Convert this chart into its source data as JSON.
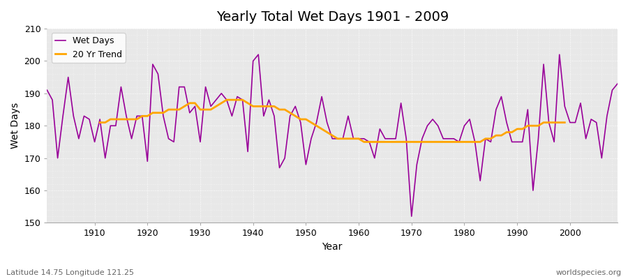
{
  "title": "Yearly Total Wet Days 1901 - 2009",
  "xlabel": "Year",
  "ylabel": "Wet Days",
  "subtitle": "Latitude 14.75 Longitude 121.25",
  "watermark": "worldspecies.org",
  "legend_labels": [
    "Wet Days",
    "20 Yr Trend"
  ],
  "line_color": "#990099",
  "trend_color": "#FFA500",
  "bg_color": "#ffffff",
  "plot_bg_color": "#e8e8e8",
  "years": [
    1901,
    1902,
    1903,
    1904,
    1905,
    1906,
    1907,
    1908,
    1909,
    1910,
    1911,
    1912,
    1913,
    1914,
    1915,
    1916,
    1917,
    1918,
    1919,
    1920,
    1921,
    1922,
    1923,
    1924,
    1925,
    1926,
    1927,
    1928,
    1929,
    1930,
    1931,
    1932,
    1933,
    1934,
    1935,
    1936,
    1937,
    1938,
    1939,
    1940,
    1941,
    1942,
    1943,
    1944,
    1945,
    1946,
    1947,
    1948,
    1949,
    1950,
    1951,
    1952,
    1953,
    1954,
    1955,
    1956,
    1957,
    1958,
    1959,
    1960,
    1961,
    1962,
    1963,
    1964,
    1965,
    1966,
    1967,
    1968,
    1969,
    1970,
    1971,
    1972,
    1973,
    1974,
    1975,
    1976,
    1977,
    1978,
    1979,
    1980,
    1981,
    1982,
    1983,
    1984,
    1985,
    1986,
    1987,
    1988,
    1989,
    1990,
    1991,
    1992,
    1993,
    1994,
    1995,
    1996,
    1997,
    1998,
    1999,
    2000,
    2001,
    2002,
    2003,
    2004,
    2005,
    2006,
    2007,
    2008,
    2009
  ],
  "wet_days": [
    191,
    188,
    170,
    183,
    195,
    183,
    176,
    183,
    182,
    175,
    182,
    170,
    180,
    180,
    192,
    183,
    176,
    183,
    183,
    169,
    199,
    196,
    183,
    176,
    175,
    192,
    192,
    184,
    186,
    175,
    192,
    186,
    188,
    190,
    188,
    183,
    189,
    188,
    172,
    200,
    202,
    183,
    188,
    183,
    167,
    170,
    183,
    186,
    181,
    168,
    176,
    181,
    189,
    181,
    176,
    176,
    176,
    183,
    176,
    176,
    176,
    175,
    170,
    179,
    176,
    176,
    176,
    187,
    176,
    152,
    168,
    176,
    180,
    182,
    180,
    176,
    176,
    176,
    175,
    180,
    182,
    175,
    163,
    176,
    175,
    185,
    189,
    181,
    175,
    175,
    175,
    185,
    160,
    176,
    199,
    181,
    175,
    202,
    186,
    181,
    181,
    187,
    176,
    182,
    181,
    170,
    183,
    191,
    193
  ],
  "trend_years": [
    1911,
    1912,
    1913,
    1914,
    1915,
    1916,
    1917,
    1918,
    1919,
    1920,
    1921,
    1922,
    1923,
    1924,
    1925,
    1926,
    1927,
    1928,
    1929,
    1930,
    1931,
    1932,
    1933,
    1934,
    1935,
    1936,
    1937,
    1938,
    1939,
    1940,
    1941,
    1942,
    1943,
    1944,
    1945,
    1946,
    1947,
    1948,
    1949,
    1950,
    1951,
    1952,
    1953,
    1954,
    1955,
    1956,
    1957,
    1958,
    1959,
    1960,
    1961,
    1962,
    1963,
    1964,
    1965,
    1966,
    1967,
    1968,
    1969,
    1970,
    1971,
    1972,
    1973,
    1974,
    1975,
    1976,
    1977,
    1978,
    1979,
    1980,
    1981,
    1982,
    1983,
    1984,
    1985,
    1986,
    1987,
    1988,
    1989,
    1990,
    1991,
    1992,
    1993,
    1994,
    1995,
    1996,
    1997,
    1998,
    1999
  ],
  "trend_values": [
    181,
    181,
    182,
    182,
    182,
    182,
    182,
    182,
    183,
    183,
    184,
    184,
    184,
    185,
    185,
    185,
    186,
    187,
    187,
    185,
    185,
    185,
    186,
    187,
    188,
    188,
    188,
    188,
    187,
    186,
    186,
    186,
    186,
    186,
    185,
    185,
    184,
    183,
    182,
    182,
    181,
    180,
    179,
    178,
    177,
    176,
    176,
    176,
    176,
    176,
    175,
    175,
    175,
    175,
    175,
    175,
    175,
    175,
    175,
    175,
    175,
    175,
    175,
    175,
    175,
    175,
    175,
    175,
    175,
    175,
    175,
    175,
    175,
    176,
    176,
    177,
    177,
    178,
    178,
    179,
    179,
    180,
    180,
    180,
    181,
    181,
    181,
    181,
    181
  ],
  "ylim": [
    150,
    210
  ],
  "xlim": [
    1901,
    2009
  ],
  "yticks": [
    150,
    160,
    170,
    180,
    190,
    200,
    210
  ],
  "xticks": [
    1910,
    1920,
    1930,
    1940,
    1950,
    1960,
    1970,
    1980,
    1990,
    2000
  ]
}
